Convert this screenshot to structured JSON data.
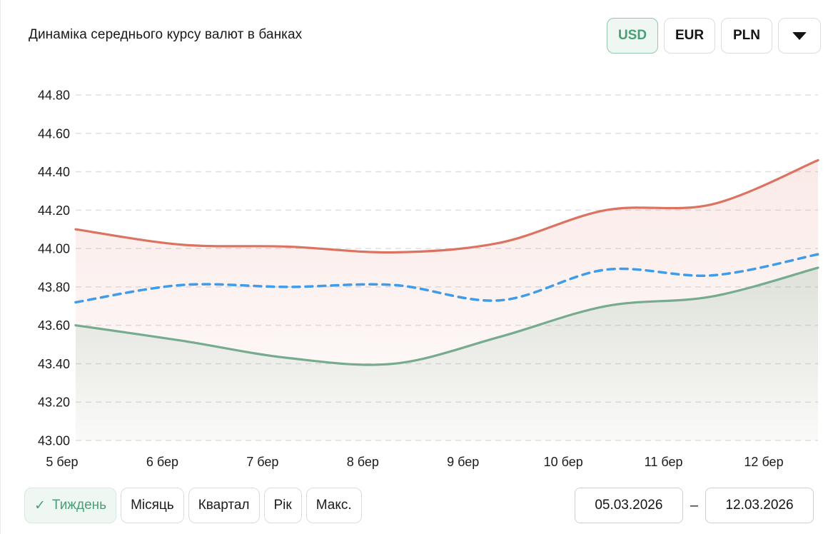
{
  "header": {
    "title": "Динаміка середнього курсу валют в банках",
    "currency_tabs": [
      {
        "label": "USD",
        "selected": true
      },
      {
        "label": "EUR",
        "selected": false
      },
      {
        "label": "PLN",
        "selected": false
      }
    ],
    "currency_dropdown_icon": "caret-down-icon"
  },
  "chart_data": {
    "type": "line",
    "title": "Динаміка середнього курсу валют в банках",
    "categories": [
      "5 бер",
      "6 бер",
      "7 бер",
      "8 бер",
      "9 бер",
      "10 бер",
      "11 бер",
      "12 бер"
    ],
    "series": [
      {
        "name": "upper-line-solid-red",
        "color": "#dc7260",
        "line_style": "solid",
        "area_fill": true,
        "fill_alpha_top": 0.15,
        "fill_alpha_bottom": 0.02,
        "values": [
          44.1,
          44.02,
          44.01,
          43.98,
          44.03,
          44.2,
          44.23,
          44.46
        ]
      },
      {
        "name": "middle-line-dashed-blue",
        "color": "#3f9ceb",
        "line_style": "dashed",
        "area_fill": false,
        "values": [
          43.72,
          43.81,
          43.8,
          43.81,
          43.73,
          43.89,
          43.86,
          43.97
        ]
      },
      {
        "name": "lower-line-solid-green",
        "color": "#76ab8e",
        "line_style": "solid",
        "area_fill": true,
        "fill_alpha_top": 0.22,
        "fill_alpha_bottom": 0.03,
        "values": [
          43.6,
          43.52,
          43.43,
          43.4,
          43.54,
          43.7,
          43.75,
          43.9
        ]
      }
    ],
    "ylim": [
      43.0,
      44.8
    ],
    "ytick_step": 0.2,
    "ytick_labels": [
      "44.80",
      "44.60",
      "44.40",
      "44.20",
      "44.00",
      "43.80",
      "43.60",
      "43.40",
      "43.20",
      "43.00"
    ],
    "grid": "horizontal-dashed",
    "legend_position": "none",
    "xlabel": "",
    "ylabel": ""
  },
  "footer": {
    "check_glyph": "✓",
    "period_buttons": [
      {
        "label": "Тиждень",
        "selected": true
      },
      {
        "label": "Місяць",
        "selected": false
      },
      {
        "label": "Квартал",
        "selected": false
      },
      {
        "label": "Рік",
        "selected": false
      },
      {
        "label": "Макс.",
        "selected": false
      }
    ],
    "date_range": {
      "from": "05.03.2026",
      "separator": "–",
      "to": "12.03.2026"
    }
  },
  "colors": {
    "accent_green": "#4a9e78",
    "accent_green_bg": "#eef7f1",
    "accent_green_border": "#93c7ab",
    "line_red": "#dc7260",
    "line_blue": "#3f9ceb",
    "line_green": "#76ab8e",
    "grid": "#e0e0e0",
    "text": "#1b1b1b",
    "button_border": "#dcdcdc"
  }
}
